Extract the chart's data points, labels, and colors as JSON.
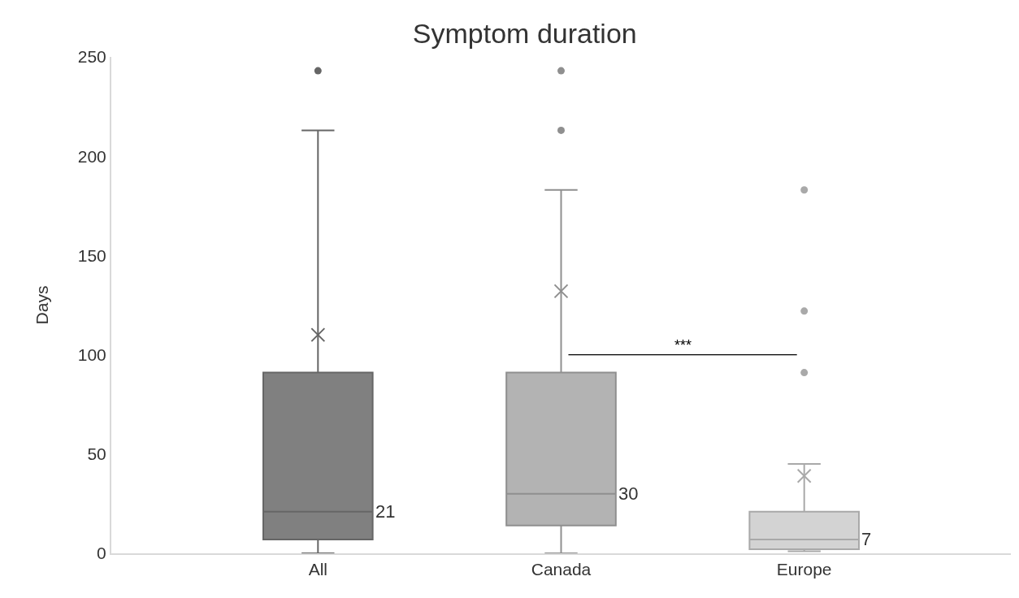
{
  "chart_data": {
    "type": "box",
    "title": "Symptom duration",
    "ylabel": "Days",
    "categories": [
      "All",
      "Canada",
      "Europe"
    ],
    "colors": [
      "#808080",
      "#b3b3b3",
      "#d3d3d3"
    ],
    "boxes": [
      {
        "low": 0,
        "q1": 7,
        "median": 21,
        "q3": 91,
        "high": 213,
        "mean": 110,
        "outliers": [
          243
        ]
      },
      {
        "low": 0,
        "q1": 14,
        "median": 30,
        "q3": 91,
        "high": 183,
        "mean": 132,
        "outliers": [
          213,
          243
        ]
      },
      {
        "low": 1,
        "q1": 2,
        "median": 7,
        "q3": 21,
        "high": 45,
        "mean": 39,
        "outliers": [
          91,
          122,
          183
        ]
      }
    ],
    "annotations": [
      "21",
      "30",
      "7",
      "***"
    ],
    "ylim": [
      0,
      250
    ],
    "yticks": [
      0,
      50,
      100,
      150,
      200,
      250
    ]
  }
}
